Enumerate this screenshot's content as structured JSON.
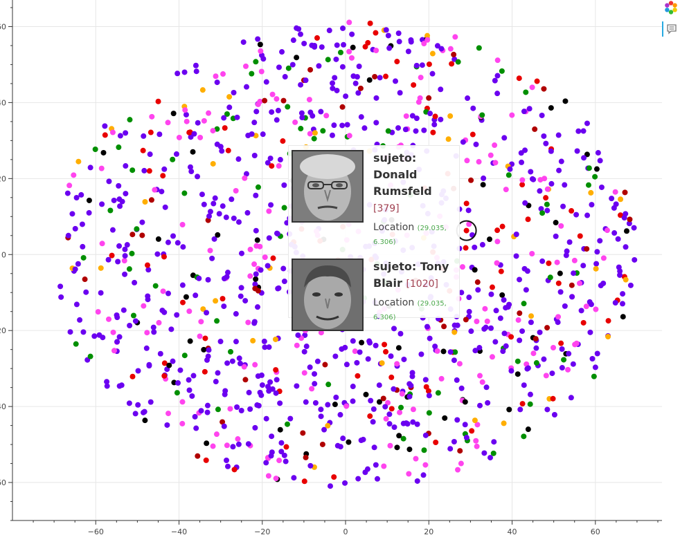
{
  "chart_data": {
    "type": "scatter",
    "title": "",
    "xlabel": "",
    "ylabel": "",
    "xlim": [
      -80,
      76
    ],
    "ylim": [
      -70,
      67
    ],
    "x_ticks": [
      -60,
      -40,
      -20,
      0,
      20,
      40,
      60
    ],
    "y_ticks": [
      60,
      40,
      20,
      0,
      -20,
      -40,
      -60
    ],
    "x_tick_labels": [
      "−60",
      "−40",
      "−20",
      "0",
      "20",
      "40",
      "60"
    ],
    "y_tick_labels": [
      "60",
      "40",
      "20",
      "0",
      "−20",
      "−40",
      "−60"
    ],
    "grid": true,
    "legend": "none",
    "series": [
      {
        "color": "#6b00f0",
        "weight": 0.55
      },
      {
        "color": "#ff44ee",
        "weight": 0.16
      },
      {
        "color": "#e80000",
        "weight": 0.08
      },
      {
        "color": "#008f00",
        "weight": 0.07
      },
      {
        "color": "#000000",
        "weight": 0.06
      },
      {
        "color": "#b00000",
        "weight": 0.04
      },
      {
        "color": "#ffae00",
        "weight": 0.04
      }
    ],
    "highlighted_point": {
      "x": 29.035,
      "y": 6.306
    }
  },
  "tooltip": {
    "entries": [
      {
        "label": "sujeto: Donald Rumsfeld",
        "index": "[379]",
        "location_label": "Location",
        "location_value": "(29.035, 6.306)"
      },
      {
        "label": "sujeto: Tony Blair",
        "index": "[1020]",
        "location_label": "Location",
        "location_value": "(29.035, 6.306)"
      }
    ]
  },
  "toolbar": {
    "tools": [
      {
        "icon": "bokeh-logo-icon"
      },
      {
        "icon": "hover-tool-icon"
      }
    ]
  }
}
